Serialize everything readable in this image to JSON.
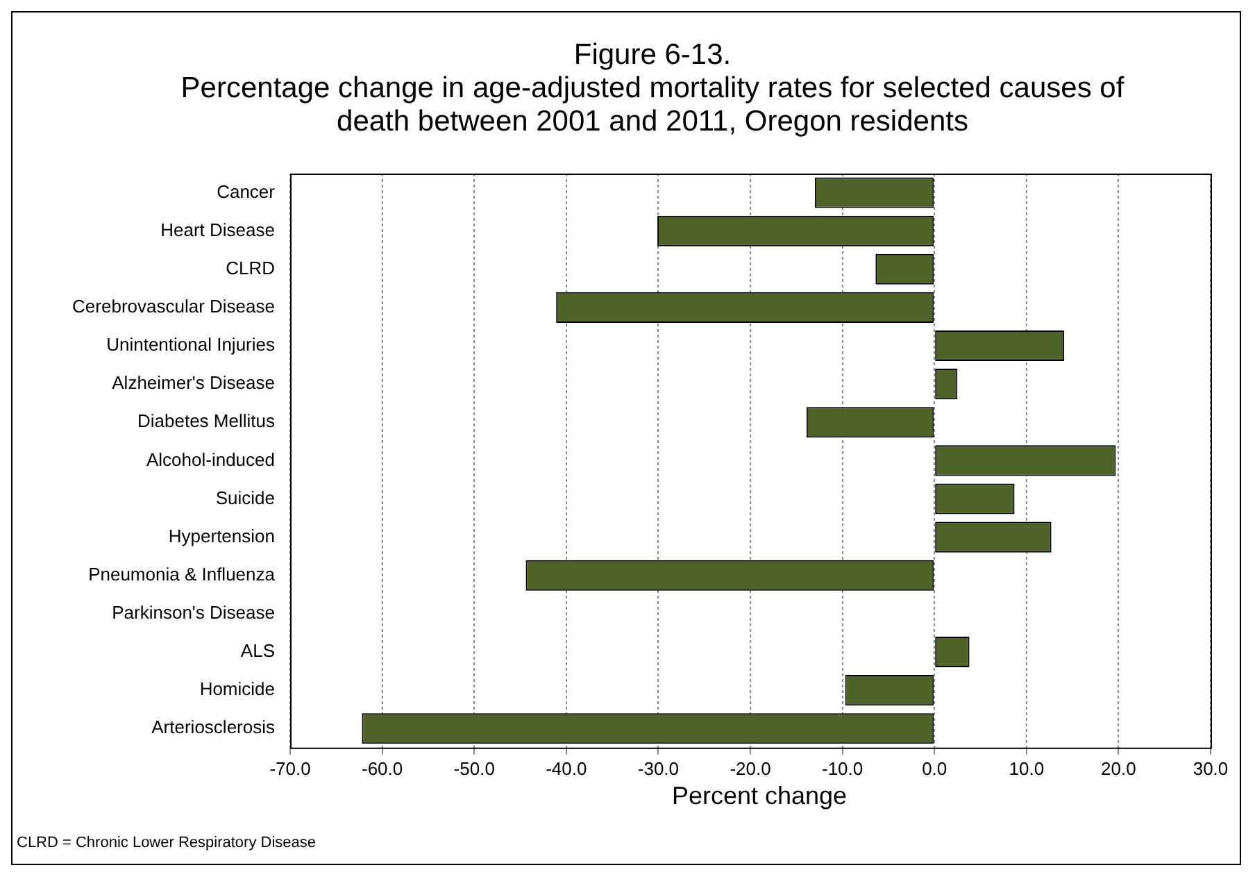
{
  "chart_data": {
    "type": "bar",
    "orientation": "horizontal",
    "title": "Figure 6-13.",
    "subtitle": "Percentage change in age-adjusted mortality rates for selected causes of death between 2001 and 2011, Oregon residents",
    "xlabel": "Percent change",
    "categories": [
      "Cancer",
      "Heart Disease",
      "CLRD",
      "Cerebrovascular Disease",
      "Unintentional Injuries",
      "Alzheimer's Disease",
      "Diabetes Mellitus",
      "Alcohol-induced",
      "Suicide",
      "Hypertension",
      "Pneumonia & Influenza",
      "Parkinson's Disease",
      "ALS",
      "Homicide",
      "Arteriosclerosis"
    ],
    "values": [
      -13.0,
      -30.1,
      -6.4,
      -41.1,
      14.1,
      2.5,
      -13.9,
      19.7,
      8.7,
      12.7,
      -44.4,
      0,
      3.8,
      -9.7,
      -62.2
    ],
    "color": "#4f6228",
    "xlim": [
      -70,
      30
    ],
    "xticks": [
      {
        "value": -70,
        "label": "-70.0"
      },
      {
        "value": -60,
        "label": "-60.0"
      },
      {
        "value": -50,
        "label": "-50.0"
      },
      {
        "value": -40,
        "label": "-40.0"
      },
      {
        "value": -30,
        "label": "-30.0"
      },
      {
        "value": -20,
        "label": "-20.0"
      },
      {
        "value": -10,
        "label": "-10.0"
      },
      {
        "value": 0,
        "label": "0.0"
      },
      {
        "value": 10,
        "label": "10.0"
      },
      {
        "value": 20,
        "label": "20.0"
      },
      {
        "value": 30,
        "label": "30.0"
      }
    ],
    "grid": "x",
    "legend": false,
    "annotations": [
      "CLRD = Chronic Lower Respiratory Disease"
    ]
  }
}
